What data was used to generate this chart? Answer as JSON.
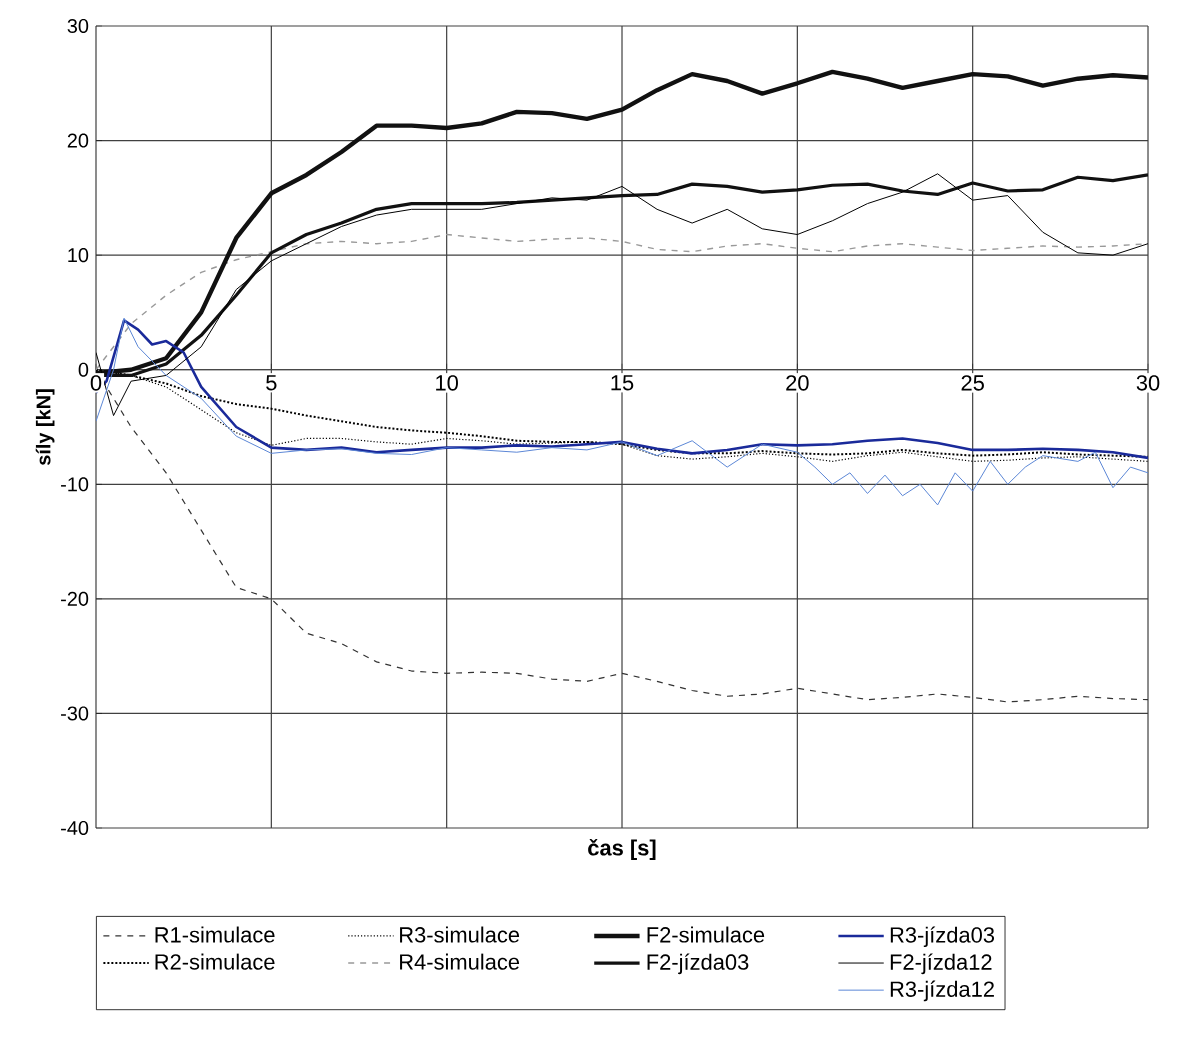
{
  "chart_data": {
    "type": "line",
    "xlabel": "čas [s]",
    "ylabel": "síly [kN]",
    "xlim": [
      0,
      30
    ],
    "ylim": [
      -40,
      30
    ],
    "xticks": [
      0,
      5,
      10,
      15,
      20,
      25,
      30
    ],
    "yticks": [
      -40,
      -30,
      -20,
      -10,
      0,
      10,
      20,
      30
    ],
    "grid": true,
    "legend": "bottom",
    "marker": "none",
    "series": [
      {
        "name": "R1-simulace",
        "color": "#333333",
        "line_style": "dashed",
        "x": [
          0,
          1,
          2,
          3,
          4,
          5,
          6,
          7,
          8,
          9,
          10,
          11,
          12,
          13,
          14,
          15,
          16,
          17,
          18,
          19,
          20,
          21,
          22,
          23,
          24,
          25,
          26,
          27,
          28,
          29,
          30
        ],
        "values": [
          0,
          -5,
          -9,
          -14,
          -19,
          -20,
          -23,
          -23.9,
          -25.5,
          -26.3,
          -26.5,
          -26.4,
          -26.5,
          -27,
          -27.2,
          -26.5,
          -27.2,
          -28,
          -28.5,
          -28.3,
          -27.8,
          -28.3,
          -28.8,
          -28.6,
          -28.3,
          -28.6,
          -29,
          -28.8,
          -28.5,
          -28.7,
          -28.8
        ]
      },
      {
        "name": "R2-simulace",
        "color": "#000000",
        "line_style": "dotted",
        "x": [
          0,
          1,
          2,
          3,
          4,
          5,
          6,
          7,
          8,
          9,
          10,
          11,
          12,
          13,
          14,
          15,
          16,
          17,
          18,
          19,
          20,
          21,
          22,
          23,
          24,
          25,
          26,
          27,
          28,
          29,
          30
        ],
        "values": [
          0,
          -0.5,
          -1.2,
          -2.3,
          -3,
          -3.4,
          -4,
          -4.5,
          -5,
          -5.3,
          -5.5,
          -5.8,
          -6.2,
          -6.3,
          -6.3,
          -6.5,
          -7,
          -7.3,
          -7.3,
          -7.1,
          -7.3,
          -7.4,
          -7.3,
          -7,
          -7.3,
          -7.5,
          -7.4,
          -7.2,
          -7.4,
          -7.5,
          -7.6
        ]
      },
      {
        "name": "R3-simulace",
        "color": "#000000",
        "line_style": "dotted",
        "x": [
          0,
          1,
          2,
          3,
          4,
          5,
          6,
          7,
          8,
          9,
          10,
          11,
          12,
          13,
          14,
          15,
          16,
          17,
          18,
          19,
          20,
          21,
          22,
          23,
          24,
          25,
          26,
          27,
          28,
          29,
          30
        ],
        "values": [
          0,
          -0.5,
          -1.5,
          -3.5,
          -5.5,
          -6.6,
          -6,
          -6,
          -6.3,
          -6.5,
          -6,
          -6.2,
          -6.5,
          -6.4,
          -6.3,
          -6.5,
          -7.5,
          -7.8,
          -7.6,
          -7.3,
          -7.6,
          -8,
          -7.5,
          -7.2,
          -7.6,
          -8,
          -7.9,
          -7.7,
          -7.6,
          -7.8,
          -8
        ]
      },
      {
        "name": "R4-simulace",
        "color": "#999999",
        "line_style": "dashed",
        "x": [
          0,
          1,
          2,
          3,
          4,
          5,
          6,
          7,
          8,
          9,
          10,
          11,
          12,
          13,
          14,
          15,
          16,
          17,
          18,
          19,
          20,
          21,
          22,
          23,
          24,
          25,
          26,
          27,
          28,
          29,
          30
        ],
        "values": [
          0,
          4,
          6.5,
          8.5,
          9.6,
          10.3,
          11,
          11.2,
          11,
          11.2,
          11.8,
          11.5,
          11.2,
          11.4,
          11.5,
          11.2,
          10.5,
          10.3,
          10.8,
          11,
          10.6,
          10.3,
          10.8,
          11,
          10.7,
          10.4,
          10.6,
          10.8,
          10.7,
          10.8,
          11
        ]
      },
      {
        "name": "F2-simulace",
        "color": "#111111",
        "line_style": "solid",
        "x": [
          0,
          1,
          2,
          3,
          4,
          5,
          6,
          7,
          8,
          9,
          10,
          11,
          12,
          13,
          14,
          15,
          16,
          17,
          18,
          19,
          20,
          21,
          22,
          23,
          24,
          25,
          26,
          27,
          28,
          29,
          30
        ],
        "values": [
          -0.3,
          0,
          1,
          5,
          11.5,
          15.4,
          17,
          19,
          21.3,
          21.3,
          21.1,
          21.5,
          22.5,
          22.4,
          21.9,
          22.7,
          24.4,
          25.8,
          25.2,
          24.1,
          25,
          26,
          25.4,
          24.6,
          25.2,
          25.8,
          25.6,
          24.8,
          25.4,
          25.7,
          25.5
        ]
      },
      {
        "name": "F2-jízda03",
        "color": "#111111",
        "line_style": "solid",
        "x": [
          0,
          1,
          2,
          3,
          4,
          5,
          6,
          7,
          8,
          9,
          10,
          11,
          12,
          13,
          14,
          15,
          16,
          17,
          18,
          19,
          20,
          21,
          22,
          23,
          24,
          25,
          26,
          27,
          28,
          29,
          30
        ],
        "values": [
          -0.5,
          -0.5,
          0.5,
          3,
          6.5,
          10.2,
          11.8,
          12.8,
          14,
          14.5,
          14.5,
          14.5,
          14.6,
          14.8,
          15,
          15.2,
          15.3,
          16.2,
          16,
          15.5,
          15.7,
          16.1,
          16.2,
          15.6,
          15.3,
          16.3,
          15.6,
          15.7,
          16.8,
          16.5,
          17
        ]
      },
      {
        "name": "R3-jízda03",
        "color": "#1a2a9a",
        "line_style": "solid",
        "x": [
          0,
          0.3,
          0.8,
          1.2,
          1.6,
          2,
          2.5,
          3,
          4,
          5,
          6,
          7,
          8,
          9,
          10,
          11,
          12,
          13,
          14,
          15,
          16,
          17,
          18,
          19,
          20,
          21,
          22,
          23,
          24,
          25,
          26,
          27,
          28,
          29,
          30
        ],
        "values": [
          -2,
          -1,
          4.3,
          3.5,
          2.2,
          2.5,
          1.5,
          -1.5,
          -5,
          -6.8,
          -7,
          -6.8,
          -7.2,
          -7,
          -6.8,
          -6.8,
          -6.6,
          -6.7,
          -6.5,
          -6.3,
          -6.9,
          -7.3,
          -7,
          -6.5,
          -6.6,
          -6.5,
          -6.2,
          -6,
          -6.4,
          -7,
          -7,
          -6.9,
          -7,
          -7.2,
          -7.7
        ]
      },
      {
        "name": "F2-jízda12",
        "color": "#000000",
        "line_style": "solid",
        "x": [
          0,
          0.5,
          1,
          2,
          3,
          4,
          5,
          6,
          7,
          8,
          9,
          10,
          11,
          12,
          13,
          14,
          15,
          16,
          17,
          18,
          19,
          20,
          21,
          22,
          23,
          24,
          25,
          26,
          27,
          28,
          29,
          30
        ],
        "values": [
          1.5,
          -4,
          -1,
          -0.5,
          2,
          7,
          9.5,
          11,
          12.5,
          13.5,
          14,
          14,
          14,
          14.5,
          15,
          14.8,
          16,
          14,
          12.8,
          14,
          12.3,
          11.8,
          13,
          14.5,
          15.5,
          17.1,
          14.8,
          15.2,
          12,
          10.2,
          10,
          11
        ]
      },
      {
        "name": "R3-jízda12",
        "color": "#5b87d6",
        "line_style": "solid",
        "x": [
          0,
          0.5,
          0.8,
          1.2,
          2,
          3,
          4,
          5,
          6,
          7,
          8,
          9,
          10,
          11,
          12,
          13,
          14,
          15,
          16,
          17,
          18,
          19,
          20,
          20.5,
          21,
          21.5,
          22,
          22.5,
          23,
          23.5,
          24,
          24.5,
          25,
          25.5,
          26,
          26.5,
          27,
          28,
          28.5,
          29,
          29.5,
          30
        ],
        "values": [
          -4.5,
          0,
          4.5,
          2,
          -0.5,
          -2.5,
          -5.8,
          -7.3,
          -7,
          -6.9,
          -7.3,
          -7.4,
          -6.8,
          -7,
          -7.2,
          -6.8,
          -7,
          -6.3,
          -7.5,
          -6.2,
          -8.5,
          -6.5,
          -7.2,
          -8.5,
          -10,
          -9,
          -10.8,
          -9.2,
          -11,
          -10,
          -11.8,
          -9,
          -10.6,
          -8,
          -10,
          -8.5,
          -7.5,
          -8,
          -7.2,
          -10.3,
          -8.5,
          -9
        ]
      }
    ]
  }
}
